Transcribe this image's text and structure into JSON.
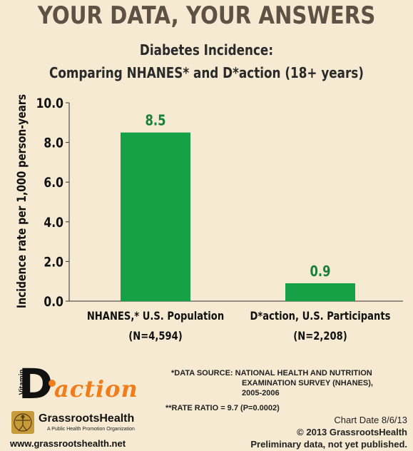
{
  "header": {
    "headline": "YOUR DATA, YOUR ANSWERS"
  },
  "chart_data": {
    "type": "bar",
    "title_line1": "Diabetes Incidence:",
    "title_line2": "Comparing NHANES* and D*action (18+ years)",
    "ylabel": "Incidence rate per 1,000 person-years",
    "ylim": [
      0,
      10
    ],
    "yticks": [
      "0.0",
      "2.0",
      "4.0",
      "6.0",
      "8.0",
      "10.0"
    ],
    "ytick_values": [
      0,
      2,
      4,
      6,
      8,
      10
    ],
    "categories": [
      {
        "line1": "NHANES,* U.S. Population",
        "line2": "(N=4,594)"
      },
      {
        "line1": "D*action, U.S. Participants",
        "line2": "(N=2,208)"
      }
    ],
    "values": [
      8.5,
      0.9
    ],
    "data_labels": [
      "8.5",
      "0.9"
    ],
    "bar_color": "#17a147",
    "label_color": "#17803a"
  },
  "notes": {
    "source_line1": "*DATA SOURCE: NATIONAL HEALTH AND NUTRITION",
    "source_line2": "EXAMINATION SURVEY (NHANES),",
    "source_line3": "2005-2006",
    "rate_ratio": "**RATE RATIO = 9.7 (P=0.0002)"
  },
  "footer": {
    "chart_date": "Chart Date 8/6/13",
    "copyright": "© 2013 GrassrootsHealth",
    "preliminary": "Preliminary data, not yet published.",
    "url": "www.grassrootshealth.net"
  },
  "logos": {
    "vitamin_text": "Vitamin",
    "d_letter": "D",
    "action_text": "action",
    "org_name": "GrassrootsHealth",
    "org_tagline": "A Public Health Promotion Organization"
  }
}
